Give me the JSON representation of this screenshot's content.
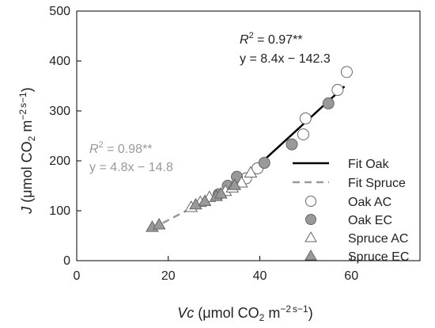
{
  "chart_data": {
    "type": "scatter",
    "xlabel": "Vc (μmol CO2 m−2 s−1)",
    "ylabel": "J (μmol CO2 m−2 s−1)",
    "xlim": [
      0,
      75
    ],
    "ylim": [
      0,
      500
    ],
    "xticks": [
      0,
      20,
      40,
      60
    ],
    "yticks": [
      0,
      100,
      200,
      300,
      400,
      500
    ],
    "grid": false,
    "legend_position": "bottom-right",
    "series": [
      {
        "name": "Oak AC",
        "marker": "circle",
        "fill": "#ffffff",
        "points": [
          [
            37,
            165
          ],
          [
            39.5,
            185
          ],
          [
            49.5,
            253
          ],
          [
            50,
            285
          ],
          [
            57,
            342
          ],
          [
            59,
            378
          ]
        ]
      },
      {
        "name": "Oak EC",
        "marker": "circle",
        "fill": "#999999",
        "points": [
          [
            31,
            133
          ],
          [
            33,
            150
          ],
          [
            35,
            168
          ],
          [
            41,
            196
          ],
          [
            47,
            233
          ],
          [
            55,
            315
          ]
        ]
      },
      {
        "name": "Spruce AC",
        "marker": "triangle",
        "fill": "#ffffff",
        "points": [
          [
            25,
            108
          ],
          [
            27,
            118
          ],
          [
            29,
            128
          ],
          [
            32.5,
            140
          ],
          [
            34,
            147
          ],
          [
            36,
            157
          ],
          [
            38,
            177
          ]
        ]
      },
      {
        "name": "Spruce EC",
        "marker": "triangle",
        "fill": "#999999",
        "points": [
          [
            16.5,
            68
          ],
          [
            18,
            73
          ],
          [
            26,
            113
          ],
          [
            28,
            120
          ],
          [
            30.5,
            130
          ],
          [
            31.5,
            135
          ],
          [
            34.5,
            152
          ]
        ]
      }
    ],
    "fits": [
      {
        "name": "Fit Oak",
        "style": "solid",
        "color": "#000000",
        "x_range": [
          41,
          58.5
        ],
        "slope": 8.4,
        "intercept": -142.3
      },
      {
        "name": "Fit Spruce",
        "style": "dashed",
        "color": "#999999",
        "x_range": [
          16.5,
          38
        ],
        "slope": 4.8,
        "intercept": -14.8
      }
    ],
    "annotations": [
      {
        "id": "oak",
        "r2_prefix": "R",
        "r2_sup": "2",
        "r2_value": " = 0.97**",
        "equation": "y = 8.4x − 142.3",
        "color": "#222222"
      },
      {
        "id": "spruce",
        "r2_prefix": "R",
        "r2_sup": "2",
        "r2_value": " = 0.98**",
        "equation": "y = 4.8x − 14.8",
        "color": "#999999"
      }
    ]
  }
}
